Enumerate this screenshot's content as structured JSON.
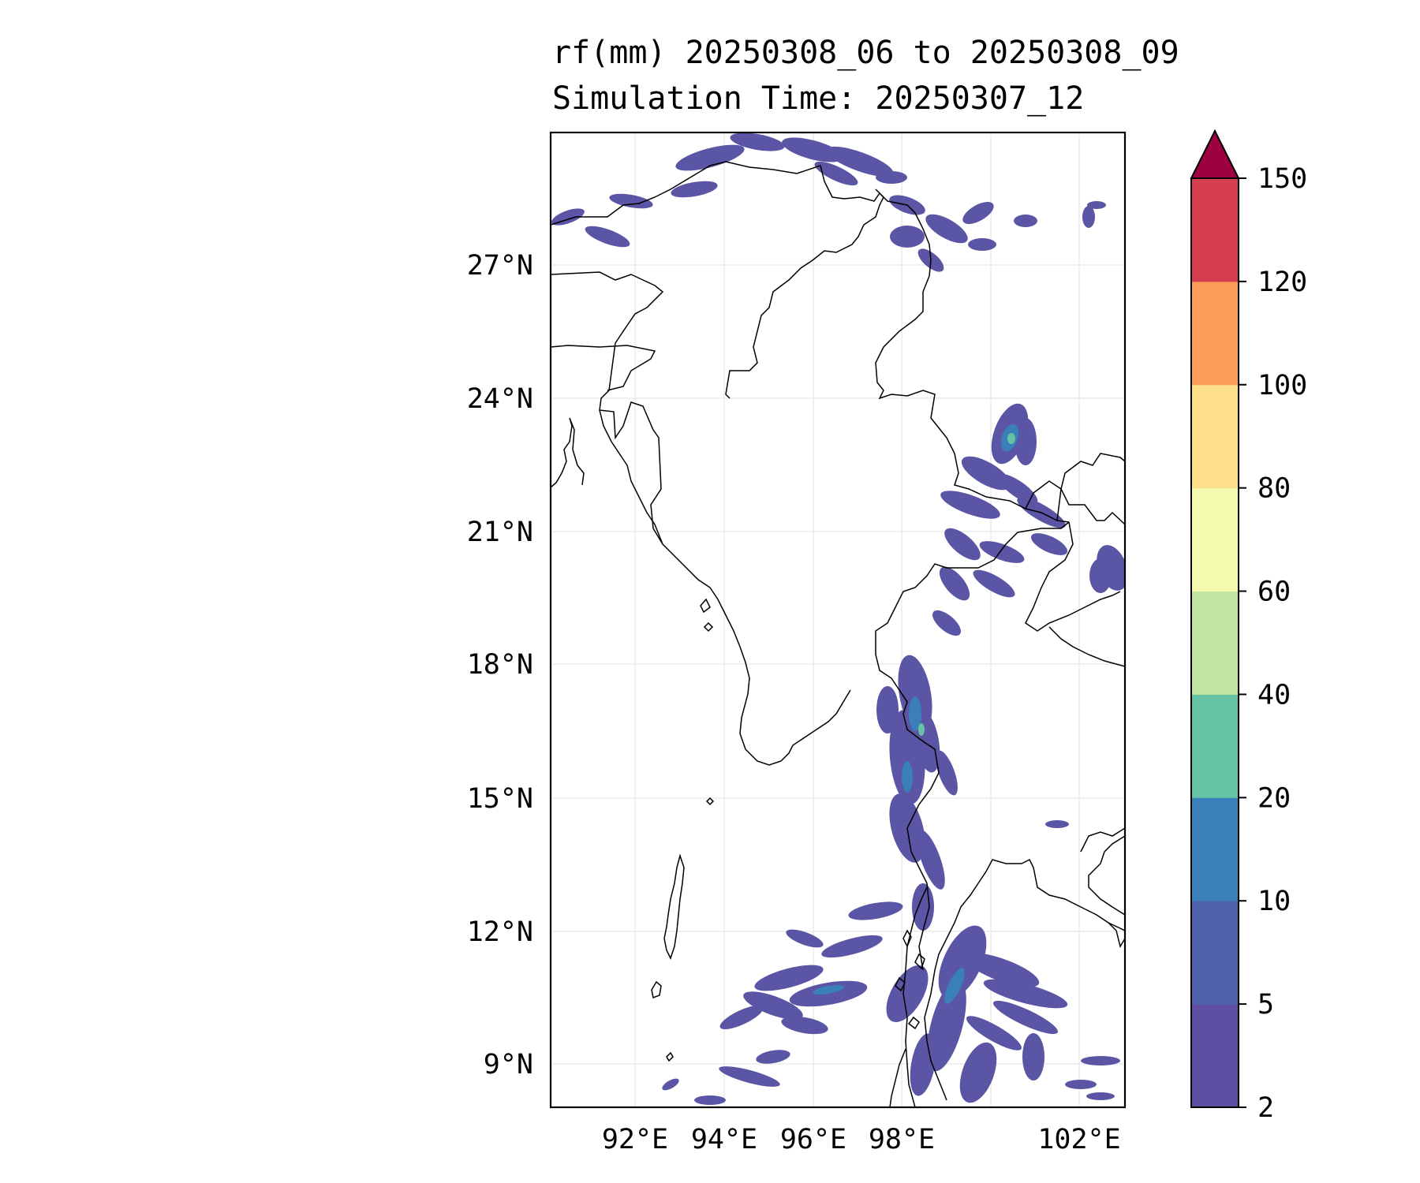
{
  "title": {
    "line1": "rf(mm) 20250308_06 to 20250308_09",
    "line2": "Simulation Time: 20250307_12"
  },
  "map": {
    "lon_range": [
      90,
      103
    ],
    "lat_range": [
      8,
      30
    ],
    "lat_ticks": [
      "27°N",
      "24°N",
      "21°N",
      "18°N",
      "15°N",
      "12°N",
      "9°N"
    ],
    "lon_ticks": [
      "92°E",
      "94°E",
      "96°E",
      "98°E",
      "102°E"
    ],
    "gridlines": true,
    "coastline_color": "#000000"
  },
  "colorbar": {
    "labels": [
      "2",
      "5",
      "10",
      "20",
      "40",
      "60",
      "80",
      "100",
      "120",
      "150"
    ],
    "colors": [
      "#5e4fa2",
      "#4f61aa",
      "#3a7fb8",
      "#66c2a5",
      "#bfe5a0",
      "#f3faad",
      "#fddf8c",
      "#f99d59",
      "#d53e4f",
      "#9e0142"
    ],
    "extend": "max"
  },
  "rain_field": {
    "description_colors": {
      "light": "#5a55a4",
      "moderate": "#4a63ad",
      "heavy": "#3a7fb8",
      "peak": "#66c2a5"
    }
  }
}
